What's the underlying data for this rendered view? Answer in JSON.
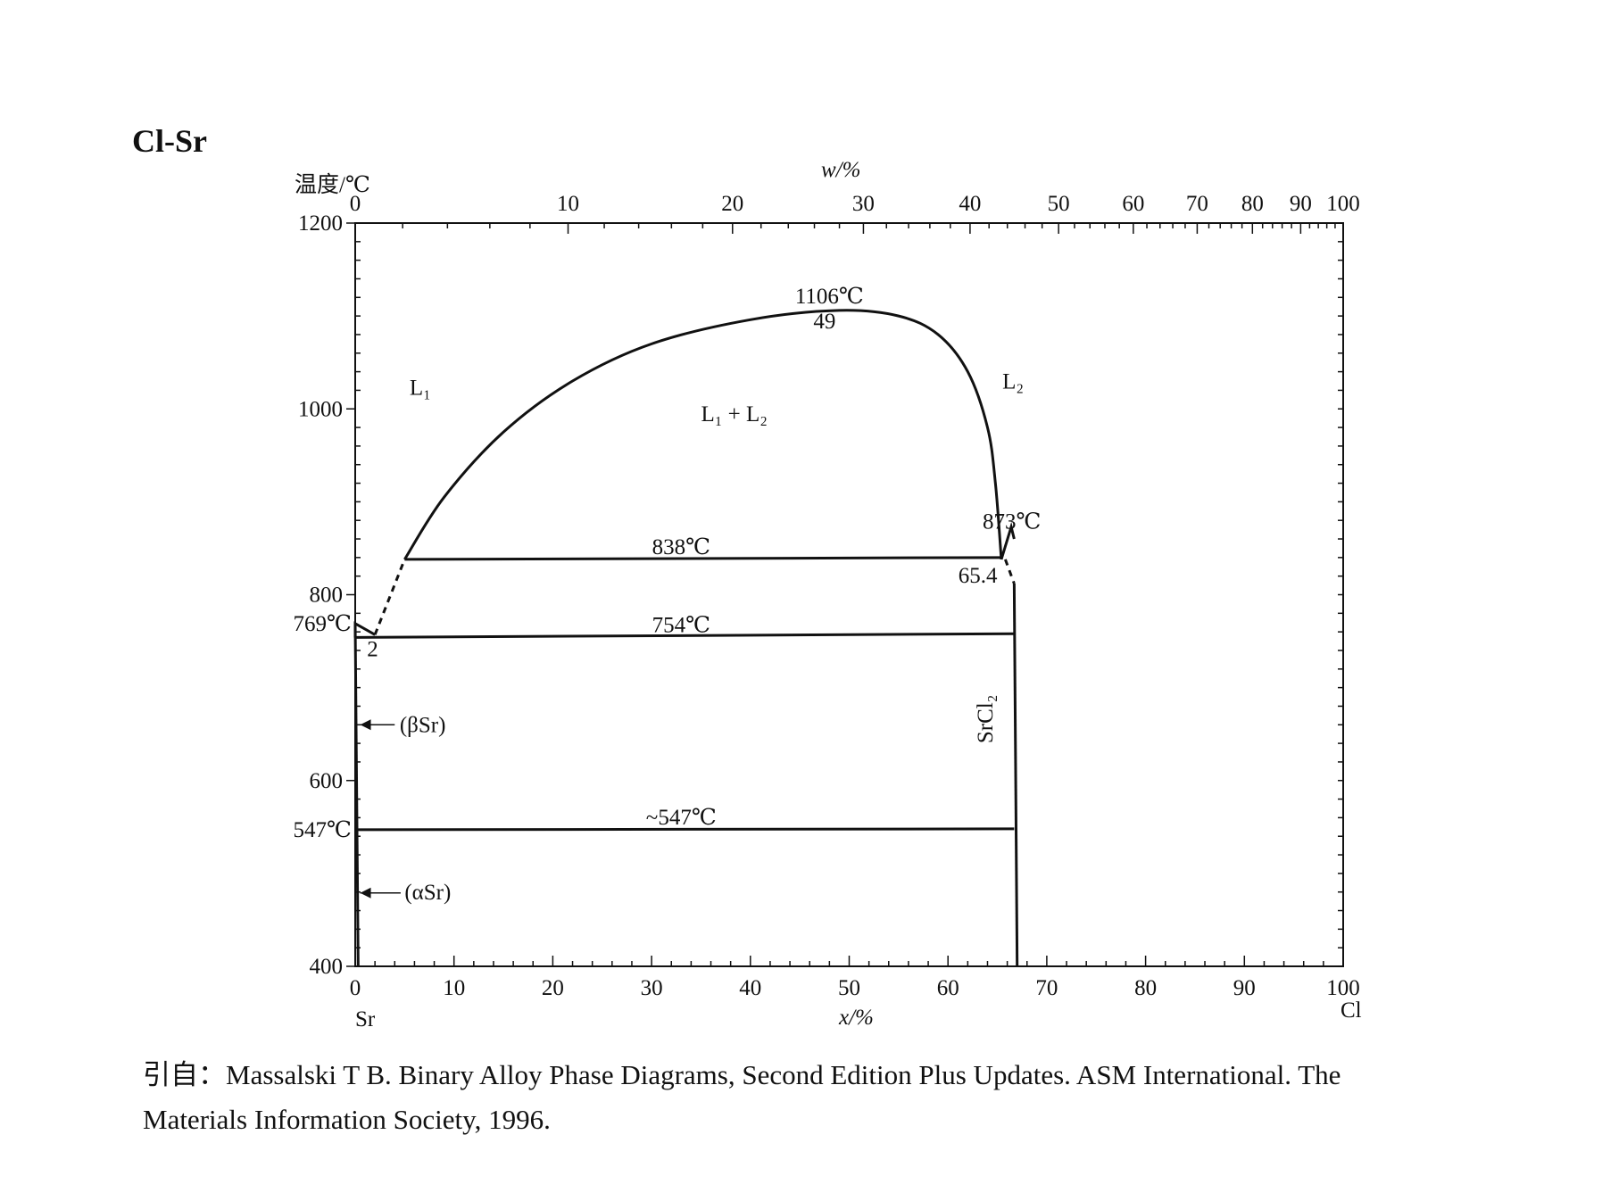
{
  "chart_data": {
    "type": "phase-diagram",
    "title": "Cl-Sr",
    "ylabel": "温度/℃",
    "xlabel_bottom": "x/%",
    "xlabel_top": "w/%",
    "left_element": "Sr",
    "right_element": "Cl",
    "ylim": [
      400,
      1200
    ],
    "xlim": [
      0,
      100
    ],
    "y_ticks": [
      400,
      600,
      800,
      1000,
      1200
    ],
    "x_ticks_bottom": [
      0,
      10,
      20,
      30,
      40,
      50,
      60,
      70,
      80,
      90,
      100
    ],
    "x_ticks_top": [
      0,
      10,
      20,
      30,
      40,
      50,
      60,
      70,
      80,
      90,
      100
    ],
    "y_side_labels": [
      {
        "text": "769℃",
        "value": 769
      },
      {
        "text": "547℃",
        "value": 547
      }
    ],
    "invariants": [
      {
        "label": "1106℃",
        "temp": 1106,
        "comp": 49,
        "comp_label": "49"
      },
      {
        "label": "838℃",
        "temp": 838,
        "from": 5,
        "to": 65.4,
        "comp_label": "65.4"
      },
      {
        "label": "754℃",
        "temp": 754,
        "from": 0,
        "to": 66.7
      },
      {
        "label": "~547℃",
        "temp": 547,
        "from": 0,
        "to": 66.7
      },
      {
        "label": "873℃",
        "temp": 873,
        "comp": 66.7
      },
      {
        "label": "2",
        "temp": 757,
        "comp": 2
      }
    ],
    "miscibility_gap": [
      [
        5,
        838
      ],
      [
        9,
        905
      ],
      [
        15,
        975
      ],
      [
        22,
        1030
      ],
      [
        30,
        1070
      ],
      [
        40,
        1096
      ],
      [
        49,
        1106
      ],
      [
        55,
        1100
      ],
      [
        59,
        1080
      ],
      [
        62,
        1040
      ],
      [
        64,
        980
      ],
      [
        64.8,
        920
      ],
      [
        65.4,
        838
      ]
    ],
    "phase_labels": {
      "L1": "L₁",
      "L2": "L₂",
      "L1L2": "L₁ + L₂",
      "betaSr": "(βSr)",
      "alphaSr": "(αSr)",
      "compound": "SrCl₂"
    }
  },
  "caption": {
    "line1": "引自：Massalski T B. Binary Alloy Phase Diagrams, Second Edition Plus Updates. ASM International. The",
    "line2": "Materials Information Society, 1996."
  }
}
